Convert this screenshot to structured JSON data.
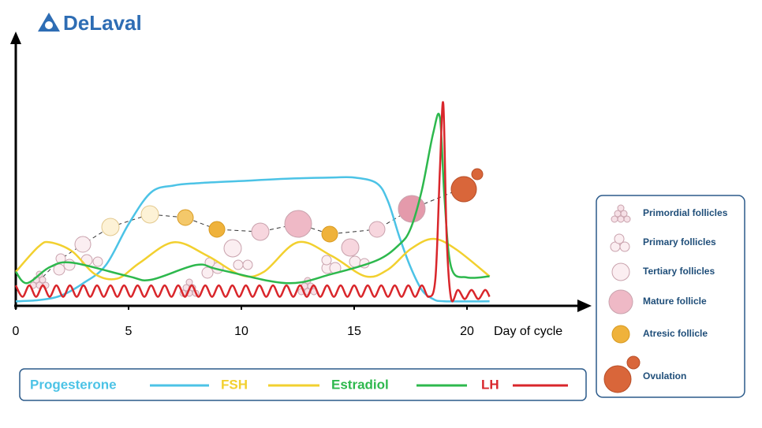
{
  "logo": "DeLaval",
  "chart_data": {
    "type": "line",
    "x_label": "Day of cycle",
    "xlim": [
      0,
      25
    ],
    "xticks": [
      0,
      5,
      10,
      15,
      20
    ],
    "ylim": [
      0,
      100
    ],
    "series": [
      {
        "name": "Progesterone",
        "color": "#4cc3e6",
        "x": [
          0,
          1,
          2,
          3,
          4,
          5,
          6,
          7,
          8,
          10,
          12,
          14,
          15,
          16,
          16.5,
          17,
          17.5,
          18,
          18.5,
          19,
          21
        ],
        "values": [
          2,
          2.5,
          4.5,
          10,
          18,
          36,
          50,
          53,
          54,
          55,
          56,
          56.5,
          56.5,
          54,
          46,
          30.5,
          17,
          7,
          3,
          2,
          2
        ]
      },
      {
        "name": "FSH",
        "color": "#f2d02f",
        "x": [
          0,
          1,
          1.5,
          2.5,
          3.5,
          4.5,
          5.5,
          7,
          8.5,
          10,
          11,
          12.5,
          14,
          15.5,
          16.5,
          17.5,
          18.5,
          19.5,
          21
        ],
        "values": [
          15,
          26,
          28,
          24,
          14,
          12,
          19,
          28,
          22,
          13.5,
          15,
          28,
          22,
          13,
          16,
          25,
          29.5,
          25,
          13
        ]
      },
      {
        "name": "Estradiol",
        "color": "#2db84d",
        "x": [
          0,
          0.5,
          1.5,
          2.5,
          5,
          6,
          8,
          9,
          12,
          14,
          16,
          17,
          17.5,
          18,
          18.5,
          18.8,
          19,
          19.3,
          20,
          21
        ],
        "values": [
          15,
          10,
          17,
          19,
          13,
          11.5,
          18,
          16,
          10,
          14,
          20,
          27,
          34,
          51,
          76,
          83,
          48,
          17,
          12.5,
          13
        ]
      },
      {
        "name": "LH",
        "color": "#d9262b",
        "x": [
          0,
          0.3,
          0.6,
          0.9,
          1.2,
          1.5,
          1.8,
          2.1,
          2.4,
          2.7,
          3,
          3.3,
          3.6,
          3.9,
          4.2,
          4.5,
          4.8,
          5.1,
          5.4,
          5.7,
          6,
          6.3,
          6.6,
          6.9,
          7.2,
          7.5,
          7.8,
          8.1,
          8.4,
          8.7,
          9,
          9.3,
          9.6,
          9.9,
          10.2,
          10.5,
          10.8,
          11.1,
          11.4,
          11.7,
          12,
          12.3,
          12.6,
          12.9,
          13.2,
          13.5,
          13.8,
          14.1,
          14.4,
          14.7,
          15,
          15.3,
          15.6,
          15.9,
          16.2,
          16.5,
          16.8,
          17.1,
          17.4,
          17.7,
          18,
          18.3,
          18.6,
          18.8,
          18.95,
          19.1,
          19.3,
          19.6,
          19.9,
          20.2,
          20.5,
          20.8,
          21
        ],
        "values": [
          9,
          4,
          9,
          4,
          9,
          4,
          9,
          4,
          9,
          4,
          9,
          4,
          9,
          4,
          9,
          4,
          9,
          4,
          9,
          4,
          9,
          4,
          9,
          4,
          9,
          4,
          9,
          4,
          9,
          4,
          9,
          4,
          9,
          4,
          9,
          4,
          9,
          4,
          9,
          4,
          9,
          4,
          9,
          4,
          9,
          4,
          9,
          4,
          9,
          4,
          9,
          4,
          9,
          4,
          9,
          4,
          9,
          4,
          9,
          4,
          9,
          4,
          12,
          60,
          89,
          30,
          3,
          7,
          3,
          7,
          3,
          7,
          4
        ]
      }
    ],
    "follicle_legend": [
      "Primordial follicles",
      "Primary follicles",
      "Tertiary follicles",
      "Mature follicle",
      "Atresic follicle",
      "Ovulation"
    ]
  }
}
